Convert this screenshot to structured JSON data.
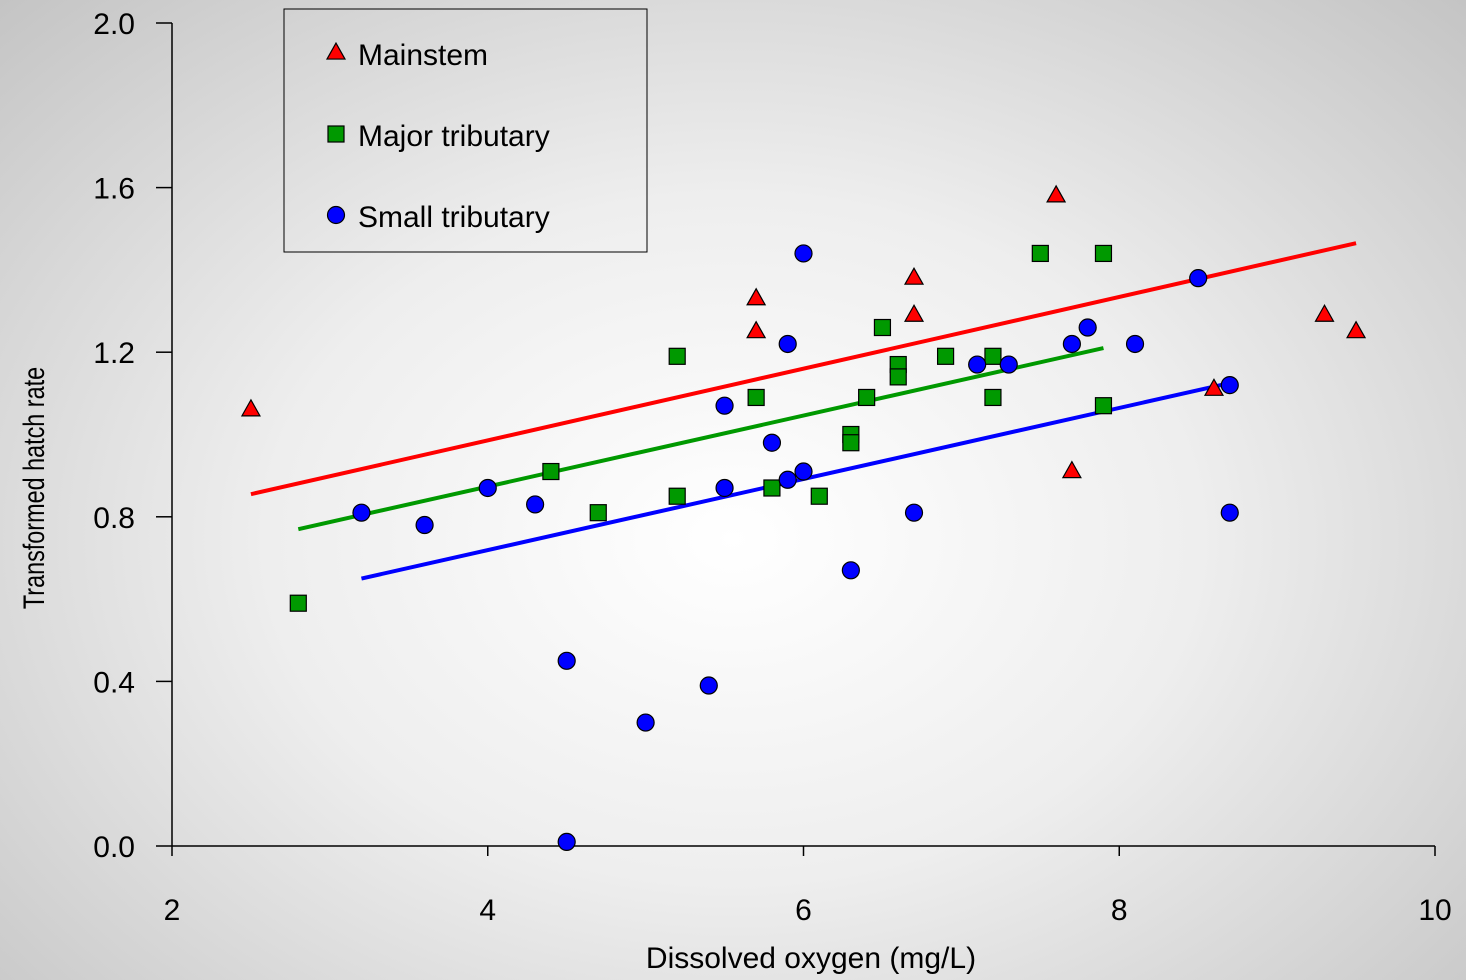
{
  "chart_data": {
    "type": "scatter",
    "title": "",
    "xlabel": "Dissolved oxygen (mg/L)",
    "ylabel": "Transformed hatch rate",
    "xlim": [
      2,
      10
    ],
    "ylim": [
      0.0,
      2.0
    ],
    "x_ticks": [
      "2",
      "4",
      "6",
      "8",
      "10"
    ],
    "y_ticks": [
      "0.0",
      "0.4",
      "0.8",
      "1.2",
      "1.6",
      "2.0"
    ],
    "grid": false,
    "legend_position": "top-left",
    "series": [
      {
        "name": "Mainstem",
        "marker": "triangle",
        "color": "#ff0000",
        "points": [
          [
            2.5,
            1.06
          ],
          [
            5.7,
            1.33
          ],
          [
            5.7,
            1.25
          ],
          [
            6.7,
            1.38
          ],
          [
            6.7,
            1.29
          ],
          [
            7.6,
            1.58
          ],
          [
            7.7,
            0.91
          ],
          [
            8.6,
            1.11
          ],
          [
            9.3,
            1.29
          ],
          [
            9.5,
            1.25
          ]
        ],
        "trendline": {
          "x": [
            2.5,
            9.5
          ],
          "y": [
            0.855,
            1.465
          ]
        }
      },
      {
        "name": "Major tributary",
        "marker": "square",
        "color": "#009900",
        "points": [
          [
            2.8,
            0.59
          ],
          [
            4.4,
            0.91
          ],
          [
            4.7,
            0.81
          ],
          [
            5.2,
            1.19
          ],
          [
            5.2,
            0.85
          ],
          [
            5.7,
            1.09
          ],
          [
            5.8,
            0.87
          ],
          [
            6.1,
            0.85
          ],
          [
            6.3,
            1.0
          ],
          [
            6.3,
            0.98
          ],
          [
            6.4,
            1.09
          ],
          [
            6.5,
            1.26
          ],
          [
            6.6,
            1.17
          ],
          [
            6.6,
            1.14
          ],
          [
            6.9,
            1.19
          ],
          [
            7.2,
            1.19
          ],
          [
            7.2,
            1.09
          ],
          [
            7.5,
            1.44
          ],
          [
            7.9,
            1.44
          ],
          [
            7.9,
            1.07
          ]
        ],
        "trendline": {
          "x": [
            2.8,
            7.9
          ],
          "y": [
            0.77,
            1.21
          ]
        }
      },
      {
        "name": "Small tributary",
        "marker": "circle",
        "color": "#0000ff",
        "points": [
          [
            3.2,
            0.81
          ],
          [
            3.6,
            0.78
          ],
          [
            4.0,
            0.87
          ],
          [
            4.3,
            0.83
          ],
          [
            4.5,
            0.45
          ],
          [
            4.5,
            0.01
          ],
          [
            5.0,
            0.3
          ],
          [
            5.4,
            0.39
          ],
          [
            5.5,
            1.07
          ],
          [
            5.5,
            0.87
          ],
          [
            5.8,
            0.98
          ],
          [
            5.9,
            1.22
          ],
          [
            5.9,
            0.89
          ],
          [
            6.0,
            1.44
          ],
          [
            6.0,
            0.91
          ],
          [
            6.3,
            0.67
          ],
          [
            6.7,
            0.81
          ],
          [
            7.1,
            1.17
          ],
          [
            7.3,
            1.17
          ],
          [
            7.7,
            1.22
          ],
          [
            7.8,
            1.26
          ],
          [
            8.1,
            1.22
          ],
          [
            8.5,
            1.38
          ],
          [
            8.7,
            1.12
          ],
          [
            8.7,
            0.81
          ]
        ],
        "trendline": {
          "x": [
            3.2,
            8.7
          ],
          "y": [
            0.65,
            1.125
          ]
        }
      }
    ]
  }
}
